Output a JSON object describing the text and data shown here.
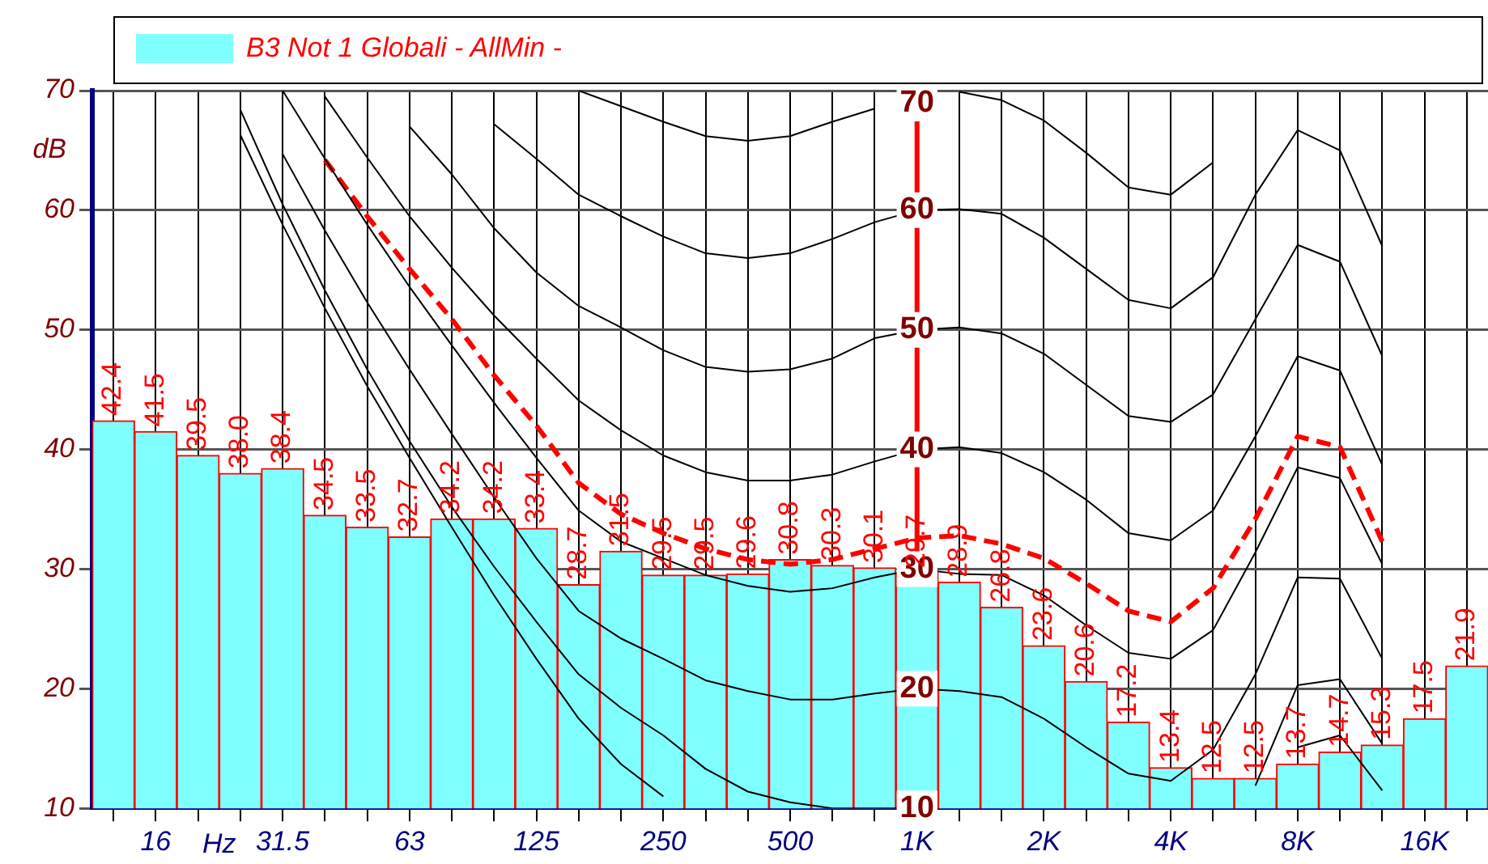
{
  "chart_data": {
    "type": "bar",
    "legend": "top",
    "ylabel": "dB",
    "xlabel": "Hz",
    "grid": true,
    "marker": "none",
    "categories": [
      null,
      "16",
      null,
      null,
      "31.5",
      null,
      null,
      "63",
      null,
      null,
      "125",
      null,
      null,
      "250",
      null,
      null,
      "500",
      null,
      null,
      "1K",
      null,
      null,
      "2K",
      null,
      null,
      "4K",
      null,
      null,
      "8K",
      null,
      null,
      "16K",
      null
    ],
    "ylim": [
      10,
      70
    ],
    "yticks": [
      10,
      20,
      30,
      40,
      50,
      60,
      70
    ],
    "ref_lines": [
      {
        "axis": "x",
        "value": "1K",
        "color": "#ff0000"
      }
    ],
    "series": [
      {
        "name": "B3 Not 1 Globali - AllMin -",
        "color": "#80ffff",
        "values": [
          42.4,
          41.5,
          39.5,
          38.0,
          38.4,
          34.5,
          33.5,
          32.7,
          34.2,
          34.2,
          33.4,
          28.7,
          31.5,
          29.5,
          29.5,
          29.6,
          30.8,
          30.3,
          30.1,
          29.7,
          28.9,
          26.8,
          23.6,
          20.6,
          17.2,
          13.4,
          12.5,
          12.5,
          13.7,
          14.7,
          15.3,
          17.5,
          21.9
        ],
        "value_labels": [
          "42.4",
          "41.5",
          "39.5",
          "38.0",
          "38.4",
          "34.5",
          "33.5",
          "32.7",
          "34.2",
          "34.2",
          "33.4",
          "28.7",
          "31.5",
          "29.5",
          "29.5",
          "29.6",
          "30.8",
          "30.3",
          "30.1",
          "29.7",
          "28.9",
          "26.8",
          "23.6",
          "20.6",
          "17.2",
          "13.4",
          "12.5",
          "12.5",
          "13.7",
          "14.7",
          "15.3",
          "17.5",
          "21.9"
        ]
      },
      {
        "type": "line",
        "name": "70",
        "color": "#000000",
        "values": [
          null,
          null,
          null,
          null,
          null,
          null,
          null,
          null,
          null,
          null,
          null,
          70.0,
          68.7,
          67.4,
          66.2,
          65.8,
          66.2,
          67.4,
          68.5,
          null,
          69.9,
          69.2,
          67.5,
          64.8,
          61.9,
          61.3,
          64.0,
          null,
          null,
          null,
          null,
          null,
          null
        ]
      },
      {
        "type": "line",
        "name": "60",
        "color": "#000000",
        "values": [
          null,
          null,
          null,
          null,
          null,
          null,
          null,
          null,
          null,
          67.2,
          64.3,
          61.3,
          59.5,
          57.8,
          56.4,
          56.0,
          56.4,
          57.6,
          59.0,
          60.0,
          60.1,
          59.7,
          57.7,
          55.1,
          52.5,
          51.8,
          54.4,
          61.3,
          66.7,
          65.0,
          57.0,
          null,
          null
        ]
      },
      {
        "type": "line",
        "name": "50",
        "color": "#000000",
        "values": [
          null,
          null,
          null,
          null,
          null,
          null,
          null,
          67.0,
          63.0,
          58.5,
          54.8,
          52.0,
          50.2,
          48.3,
          46.9,
          46.5,
          46.7,
          47.6,
          49.3,
          50.0,
          50.2,
          49.7,
          48.0,
          45.4,
          42.8,
          42.3,
          44.6,
          50.9,
          57.1,
          55.7,
          47.8,
          null,
          null
        ]
      },
      {
        "type": "line",
        "name": "40",
        "color": "#000000",
        "values": [
          null,
          null,
          null,
          null,
          null,
          69.5,
          64.4,
          59.5,
          55.2,
          51.2,
          47.6,
          44.1,
          41.6,
          39.5,
          38.1,
          37.4,
          37.4,
          37.9,
          39.0,
          40.0,
          40.2,
          39.7,
          38.1,
          35.8,
          33.0,
          32.4,
          34.9,
          41.1,
          47.8,
          46.6,
          38.7,
          null,
          null
        ]
      },
      {
        "type": "line",
        "name": "30",
        "color": "#000000",
        "values": [
          null,
          null,
          null,
          null,
          70.0,
          64.3,
          58.8,
          53.6,
          48.7,
          43.9,
          39.3,
          34.9,
          32.3,
          30.9,
          29.5,
          28.6,
          28.1,
          28.4,
          29.3,
          30.0,
          29.6,
          29.5,
          27.8,
          25.3,
          23.0,
          22.5,
          24.9,
          31.4,
          38.5,
          37.6,
          30.4,
          null,
          null
        ]
      },
      {
        "type": "line",
        "name": "20",
        "color": "#000000",
        "values": [
          null,
          null,
          null,
          null,
          64.7,
          58.3,
          52.3,
          46.7,
          41.3,
          36.0,
          30.9,
          26.5,
          24.2,
          22.5,
          20.7,
          19.8,
          19.1,
          19.1,
          19.6,
          20.0,
          19.8,
          19.3,
          17.5,
          15.1,
          12.9,
          12.3,
          14.9,
          21.2,
          29.3,
          29.2,
          22.5,
          null,
          null
        ]
      },
      {
        "type": "line",
        "name": "10",
        "color": "#000000",
        "values": [
          null,
          null,
          null,
          68.4,
          60.5,
          53.3,
          46.7,
          40.7,
          35.2,
          30.2,
          25.6,
          21.2,
          18.4,
          16.1,
          13.3,
          11.4,
          10.5,
          10.0,
          10.0,
          10.0,
          null,
          null,
          null,
          null,
          null,
          null,
          null,
          11.9,
          20.3,
          20.8,
          15.4,
          null,
          null
        ]
      },
      {
        "type": "line",
        "color": "#000000",
        "values": [
          null,
          null,
          null,
          66.3,
          58.8,
          51.8,
          45.3,
          39.3,
          33.5,
          27.8,
          22.5,
          17.5,
          13.7,
          11.0,
          null,
          null,
          null,
          null,
          null,
          null,
          null,
          null,
          null,
          null,
          null,
          null,
          null,
          null,
          15.1,
          16.1,
          11.5,
          null,
          null
        ]
      },
      {
        "type": "line",
        "color": "#ff0000",
        "line_style": "dashed",
        "values": [
          null,
          null,
          null,
          null,
          null,
          64.2,
          59.5,
          55.1,
          50.9,
          46.2,
          42.0,
          37.2,
          34.6,
          33.0,
          31.7,
          30.8,
          30.4,
          30.8,
          31.7,
          32.6,
          32.8,
          32.1,
          30.9,
          28.8,
          26.5,
          25.6,
          28.4,
          34.2,
          41.1,
          40.2,
          32.3,
          null,
          null
        ]
      }
    ]
  }
}
